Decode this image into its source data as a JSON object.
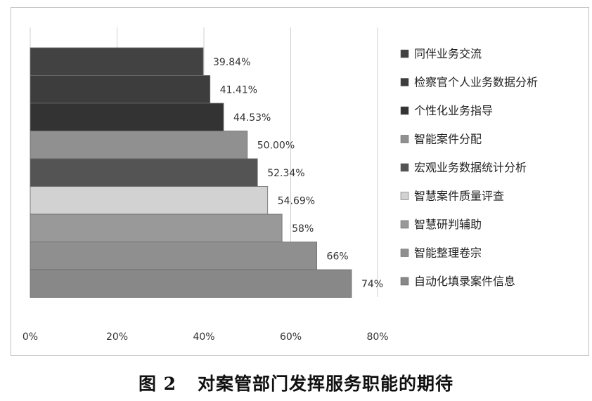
{
  "chart_data": {
    "type": "bar",
    "orientation": "horizontal",
    "stacked": false,
    "categories": [
      "同伴业务交流",
      "检察官个人业务数据分析",
      "个性化业务指导",
      "智能案件分配",
      "宏观业务数据统计分析",
      "智慧案件质量评查",
      "智慧研判辅助",
      "智能整理卷宗",
      "自动化填录案件信息"
    ],
    "values": [
      39.84,
      41.41,
      44.53,
      50.0,
      52.34,
      54.69,
      58,
      66,
      74
    ],
    "value_labels": [
      "39.84%",
      "41.41%",
      "44.53%",
      "50.00%",
      "52.34%",
      "54.69%",
      "58%",
      "66%",
      "74%"
    ],
    "colors": [
      "#424242",
      "#3d3d3d",
      "#333333",
      "#909090",
      "#545454",
      "#d2d2d2",
      "#999999",
      "#8f8f8f",
      "#888888"
    ],
    "xlim": [
      0,
      80
    ],
    "x_ticks": [
      0,
      20,
      40,
      60,
      80
    ],
    "x_tick_labels": [
      "0%",
      "20%",
      "40%",
      "60%",
      "80%"
    ],
    "grid": "vertical",
    "legend_position": "right",
    "title": "",
    "xlabel": "",
    "ylabel": ""
  },
  "caption": {
    "number": "图 2",
    "text": "对案管部门发挥服务职能的期待"
  }
}
